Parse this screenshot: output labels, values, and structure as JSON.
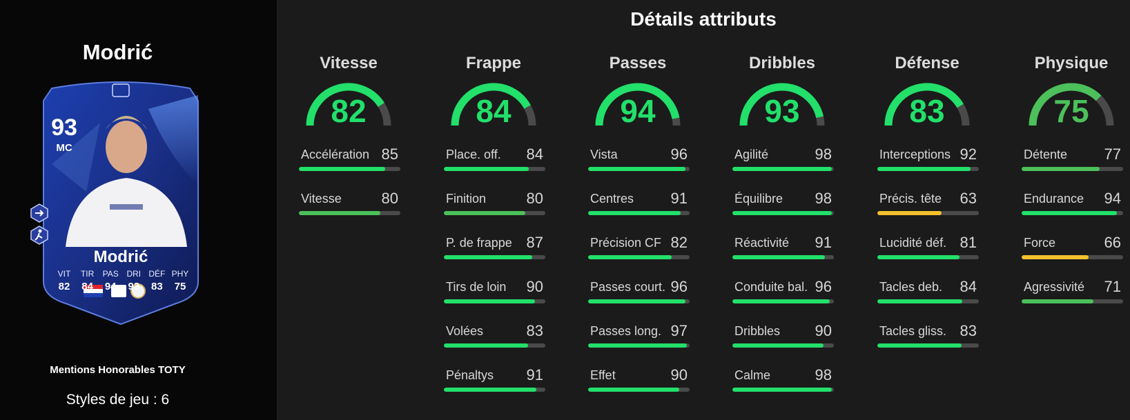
{
  "player": {
    "name": "Modrić",
    "rating": "93",
    "position": "MC",
    "card_stats": [
      {
        "label": "VIT",
        "value": "82"
      },
      {
        "label": "TIR",
        "value": "84"
      },
      {
        "label": "PAS",
        "value": "94"
      },
      {
        "label": "DRI",
        "value": "93"
      },
      {
        "label": "DÉF",
        "value": "83"
      },
      {
        "label": "PHY",
        "value": "75"
      }
    ],
    "card_type": "Mentions Honorables TOTY",
    "playstyles_label": "Styles de jeu : ",
    "playstyles_count": "6"
  },
  "details_title": "Détails attributs",
  "colors": {
    "green": "#22e06a",
    "light_green": "#4cc05a",
    "yellow": "#f2c12e",
    "track": "#4a4a4a"
  },
  "categories": [
    {
      "name": "Vitesse",
      "value": 82,
      "color": "#22e06a",
      "stats": [
        {
          "label": "Accélération",
          "value": 85,
          "color": "#22e06a"
        },
        {
          "label": "Vitesse",
          "value": 80,
          "color": "#4cc05a"
        }
      ]
    },
    {
      "name": "Frappe",
      "value": 84,
      "color": "#22e06a",
      "stats": [
        {
          "label": "Place. off.",
          "value": 84,
          "color": "#22e06a"
        },
        {
          "label": "Finition",
          "value": 80,
          "color": "#4cc05a"
        },
        {
          "label": "P. de frappe",
          "value": 87,
          "color": "#22e06a"
        },
        {
          "label": "Tirs de loin",
          "value": 90,
          "color": "#22e06a"
        },
        {
          "label": "Volées",
          "value": 83,
          "color": "#22e06a"
        },
        {
          "label": "Pénaltys",
          "value": 91,
          "color": "#22e06a"
        }
      ]
    },
    {
      "name": "Passes",
      "value": 94,
      "color": "#22e06a",
      "stats": [
        {
          "label": "Vista",
          "value": 96,
          "color": "#22e06a"
        },
        {
          "label": "Centres",
          "value": 91,
          "color": "#22e06a"
        },
        {
          "label": "Précision CF",
          "value": 82,
          "color": "#22e06a"
        },
        {
          "label": "Passes court.",
          "value": 96,
          "color": "#22e06a"
        },
        {
          "label": "Passes long.",
          "value": 97,
          "color": "#22e06a"
        },
        {
          "label": "Effet",
          "value": 90,
          "color": "#22e06a"
        }
      ]
    },
    {
      "name": "Dribbles",
      "value": 93,
      "color": "#22e06a",
      "stats": [
        {
          "label": "Agilité",
          "value": 98,
          "color": "#22e06a"
        },
        {
          "label": "Équilibre",
          "value": 98,
          "color": "#22e06a"
        },
        {
          "label": "Réactivité",
          "value": 91,
          "color": "#22e06a"
        },
        {
          "label": "Conduite bal.",
          "value": 96,
          "color": "#22e06a"
        },
        {
          "label": "Dribbles",
          "value": 90,
          "color": "#22e06a"
        },
        {
          "label": "Calme",
          "value": 98,
          "color": "#22e06a"
        }
      ]
    },
    {
      "name": "Défense",
      "value": 83,
      "color": "#22e06a",
      "stats": [
        {
          "label": "Interceptions",
          "value": 92,
          "color": "#22e06a"
        },
        {
          "label": "Précis. tête",
          "value": 63,
          "color": "#f2c12e"
        },
        {
          "label": "Lucidité déf.",
          "value": 81,
          "color": "#22e06a"
        },
        {
          "label": "Tacles deb.",
          "value": 84,
          "color": "#22e06a"
        },
        {
          "label": "Tacles gliss.",
          "value": 83,
          "color": "#22e06a"
        }
      ]
    },
    {
      "name": "Physique",
      "value": 75,
      "color": "#4cc05a",
      "stats": [
        {
          "label": "Détente",
          "value": 77,
          "color": "#4cc05a"
        },
        {
          "label": "Endurance",
          "value": 94,
          "color": "#22e06a"
        },
        {
          "label": "Force",
          "value": 66,
          "color": "#f2c12e"
        },
        {
          "label": "Agressivité",
          "value": 71,
          "color": "#4cc05a"
        }
      ]
    }
  ]
}
